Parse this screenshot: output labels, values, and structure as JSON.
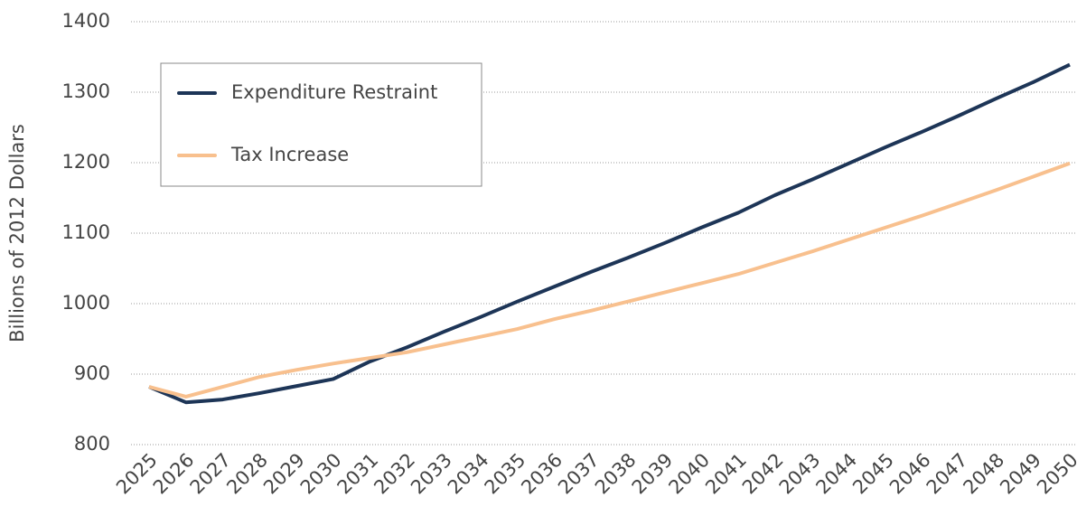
{
  "chart_data": {
    "type": "line",
    "y_label": "Billions of 2012 Dollars",
    "categories": [
      "2025",
      "2026",
      "2027",
      "2028",
      "2029",
      "2030",
      "2031",
      "2032",
      "2033",
      "2034",
      "2035",
      "2036",
      "2037",
      "2038",
      "2039",
      "2040",
      "2041",
      "2042",
      "2043",
      "2044",
      "2045",
      "2046",
      "2047",
      "2048",
      "2049",
      "2050"
    ],
    "series": [
      {
        "name": "Expenditure Restraint",
        "color": "#1d3557",
        "values": [
          882,
          860,
          864,
          873,
          883,
          893,
          918,
          938,
          960,
          981,
          1003,
          1024,
          1045,
          1065,
          1086,
          1108,
          1129,
          1154,
          1176,
          1199,
          1222,
          1244,
          1267,
          1291,
          1314,
          1339
        ]
      },
      {
        "name": "Tax Increase",
        "color": "#f8c08e",
        "values": [
          882,
          868,
          882,
          896,
          906,
          915,
          923,
          931,
          942,
          953,
          964,
          978,
          990,
          1003,
          1016,
          1029,
          1042,
          1058,
          1074,
          1091,
          1108,
          1125,
          1143,
          1161,
          1180,
          1199
        ]
      }
    ],
    "ylim": [
      800,
      1400
    ],
    "yticks": [
      800,
      900,
      1000,
      1100,
      1200,
      1300,
      1400
    ],
    "grid": true,
    "legend": "upper left"
  }
}
